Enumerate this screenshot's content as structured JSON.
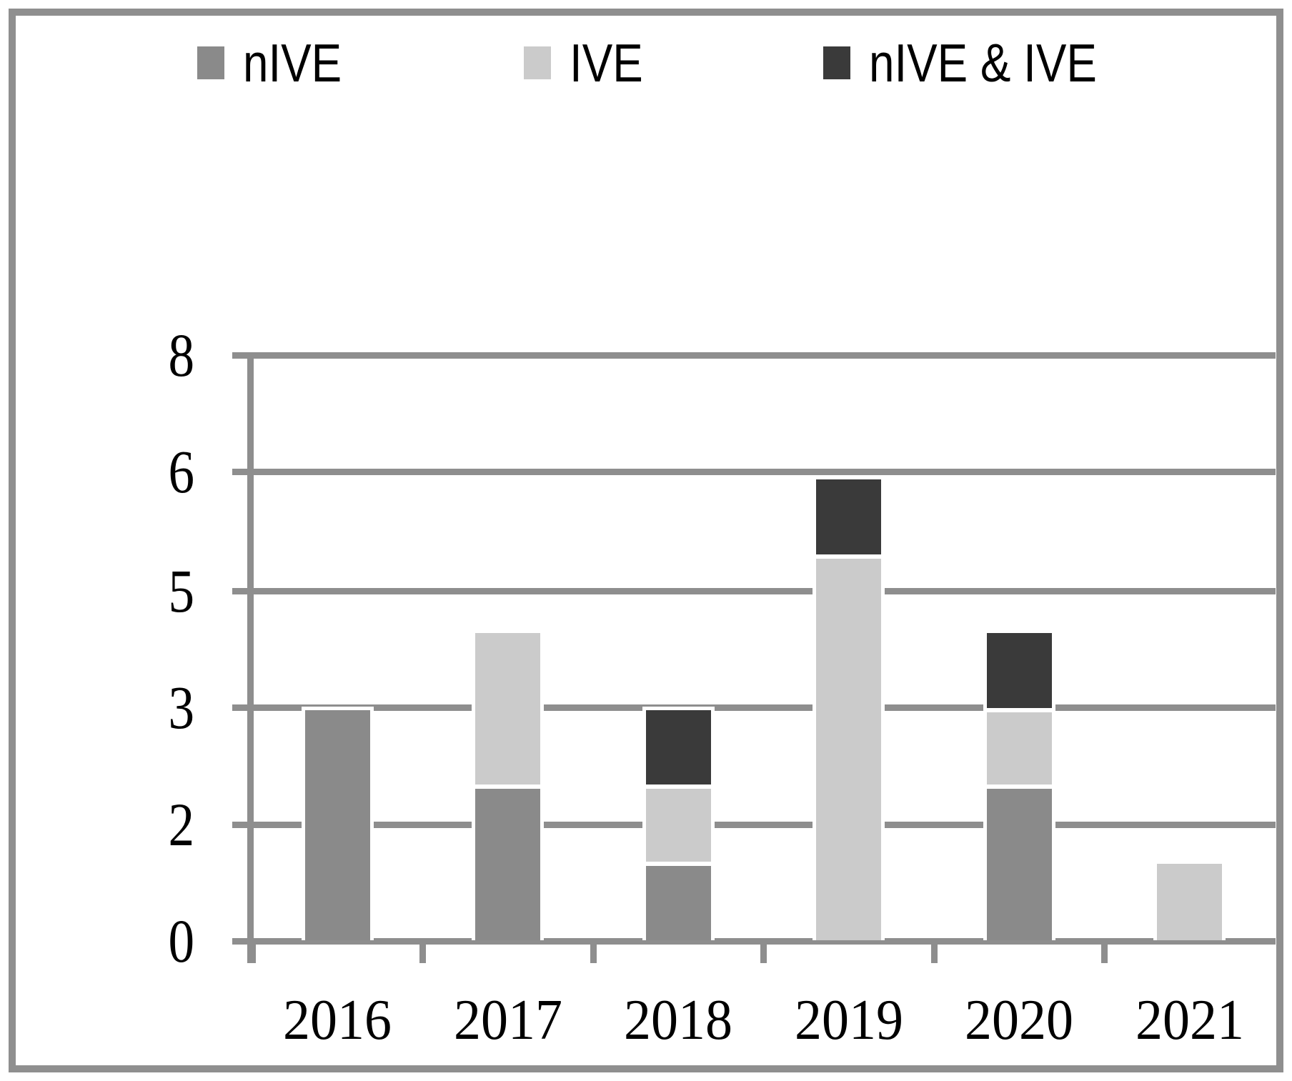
{
  "figure": {
    "kind": "stacked-bar-chart-figure",
    "title": ""
  },
  "colors": {
    "background": "#ffffff",
    "frame": "#8f8f8f",
    "grid": "#8e8e8e",
    "text": "#000000",
    "nIVE": "#8a8a8a",
    "IVE": "#cbcbcb",
    "nIVE_and_IVE": "#3a3a3a"
  },
  "legend": {
    "position": "top",
    "items": [
      {
        "label": "nIVE",
        "color": "#8a8a8a"
      },
      {
        "label": "IVE",
        "color": "#cbcbcb"
      },
      {
        "label": "nIVE & IVE",
        "color": "#3a3a3a"
      }
    ]
  },
  "chart_data": {
    "type": "bar",
    "stacked": true,
    "title": "",
    "xlabel": "",
    "ylabel": "",
    "categories": [
      "2016",
      "2017",
      "2018",
      "2019",
      "2020",
      "2021"
    ],
    "series": [
      {
        "name": "nIVE",
        "color": "#8a8a8a",
        "values": [
          3,
          2,
          1,
          0,
          2,
          0
        ]
      },
      {
        "name": "IVE",
        "color": "#cbcbcb",
        "values": [
          0,
          2,
          1,
          5,
          1,
          1
        ]
      },
      {
        "name": "nIVE & IVE",
        "color": "#3a3a3a",
        "values": [
          0,
          0,
          1,
          1,
          1,
          0
        ]
      }
    ],
    "totals": [
      3,
      4,
      3,
      6,
      4,
      1
    ],
    "stack_order_bottom_to_top": [
      "nIVE",
      "IVE",
      "nIVE & IVE"
    ],
    "y_axis": {
      "tick_labels_bottom_to_top": [
        "0",
        "2",
        "3",
        "5",
        "6",
        "8"
      ],
      "range_implied": [
        0,
        8
      ],
      "gridlines": true
    },
    "x_axis": {
      "tick_labels": [
        "2016",
        "2017",
        "2018",
        "2019",
        "2020",
        "2021"
      ]
    },
    "legend_position": "top"
  }
}
